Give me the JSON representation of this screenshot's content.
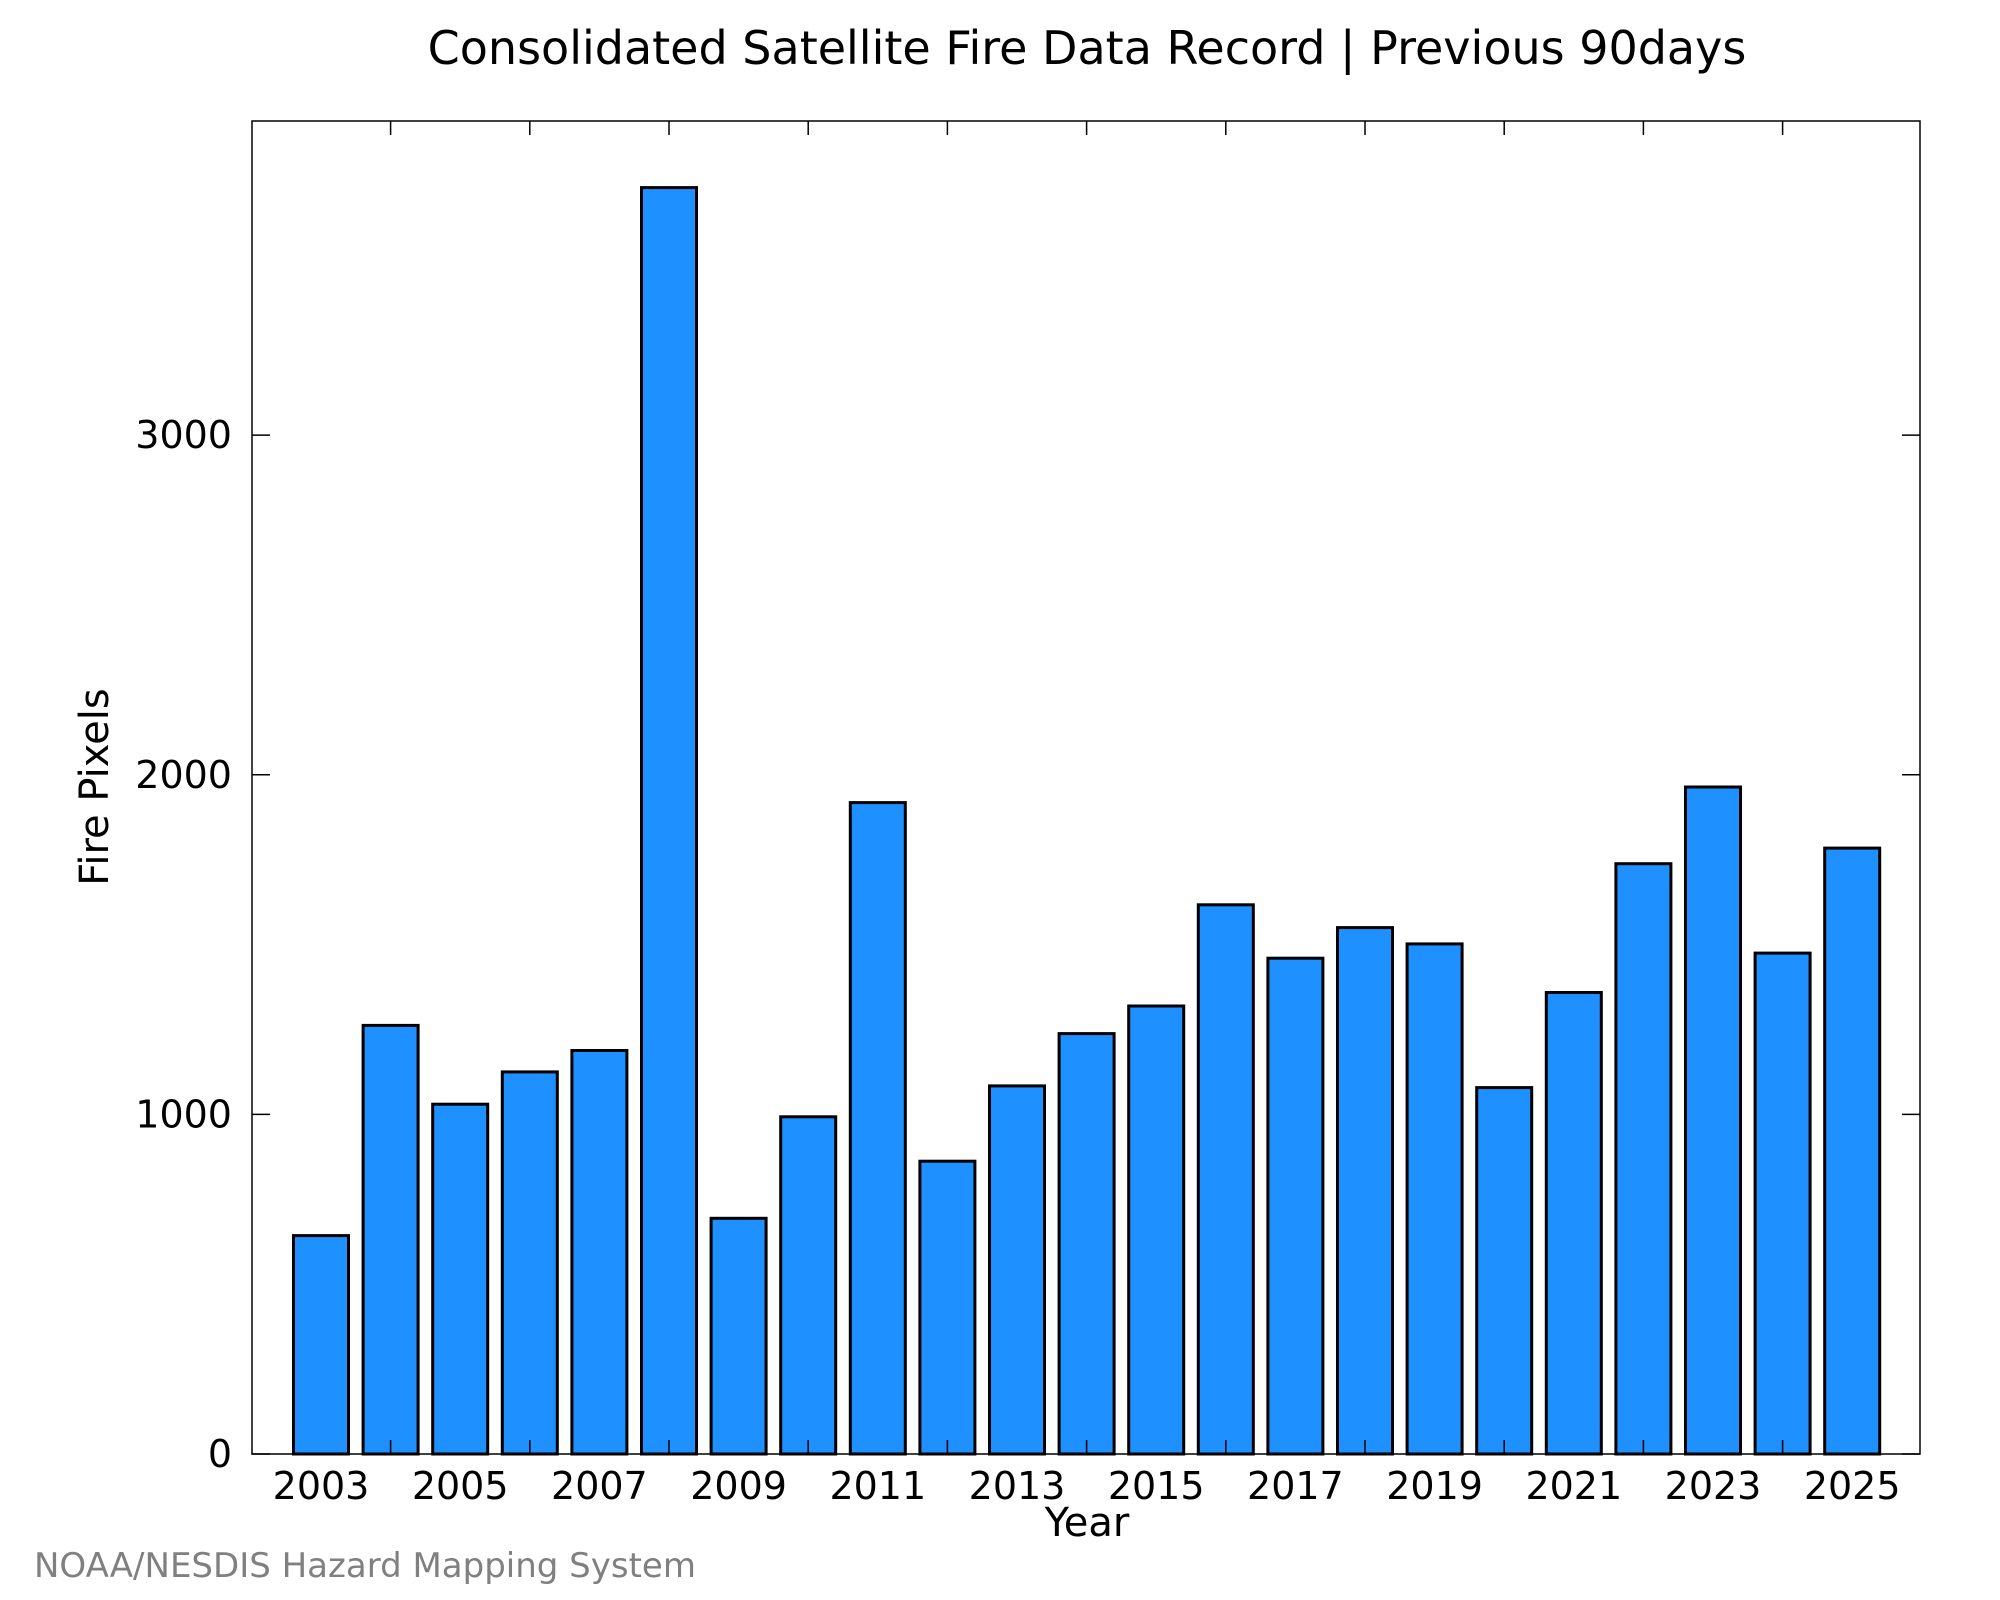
{
  "chart_data": {
    "type": "bar",
    "title": "Consolidated Satellite Fire Data Record | Previous 90days",
    "xlabel": "Year",
    "ylabel": "Fire Pixels",
    "categories": [
      "2003",
      "2004",
      "2005",
      "2006",
      "2007",
      "2008",
      "2009",
      "2010",
      "2011",
      "2012",
      "2013",
      "2014",
      "2015",
      "2016",
      "2017",
      "2018",
      "2019",
      "2020",
      "2021",
      "2022",
      "2023",
      "2024",
      "2025"
    ],
    "values": [
      643,
      1262,
      1030,
      1125,
      1188,
      3729,
      694,
      993,
      1918,
      862,
      1084,
      1238,
      1319,
      1617,
      1460,
      1550,
      1502,
      1079,
      1359,
      1738,
      1964,
      1475,
      1784
    ],
    "x_tick_labels": [
      "2003",
      "2005",
      "2007",
      "2009",
      "2011",
      "2013",
      "2015",
      "2017",
      "2019",
      "2021",
      "2023",
      "2025"
    ],
    "y_tick_labels": [
      "0",
      "1000",
      "2000",
      "3000"
    ],
    "y_ticks": [
      0,
      1000,
      2000,
      3000
    ],
    "ylim": [
      0,
      3925
    ],
    "grid": false,
    "legend": "none",
    "bar_color": "#1e90ff",
    "bar_edge_color": "#000000"
  },
  "credit": "NOAA/NESDIS Hazard Mapping System"
}
